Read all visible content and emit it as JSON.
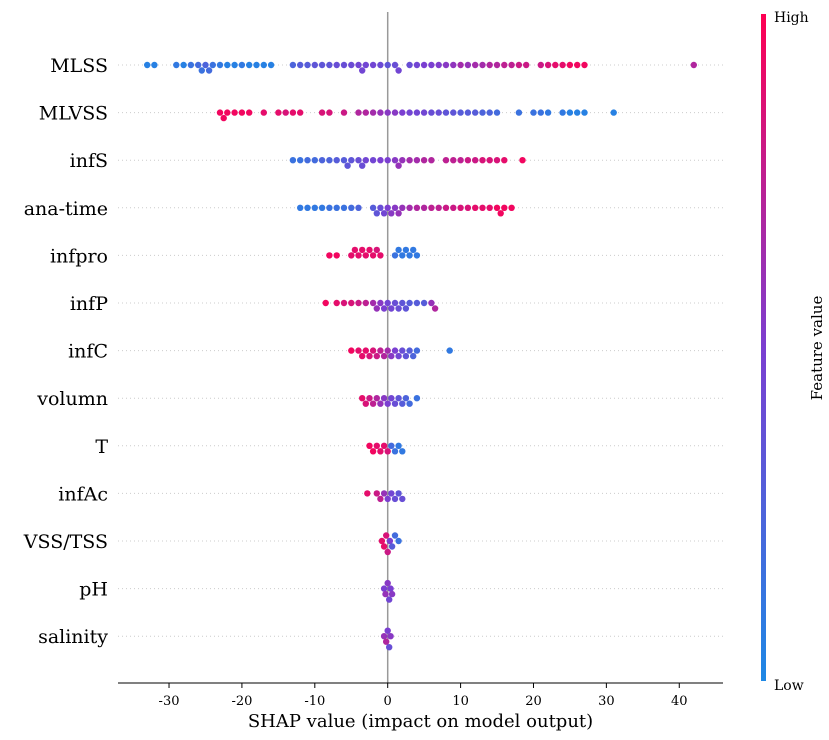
{
  "chart_data": {
    "type": "scatter",
    "subtype": "shap-beeswarm",
    "title": "",
    "xlabel": "SHAP value (impact on model output)",
    "ylabel": "",
    "xlim": [
      -37,
      46
    ],
    "xticks": [
      "-30",
      "-20",
      "-10",
      "0",
      "10",
      "20",
      "30",
      "40"
    ],
    "xtick_values": [
      -30,
      -20,
      -10,
      0,
      10,
      20,
      30,
      40
    ],
    "grid": false,
    "colorbar": {
      "title": "Feature value",
      "high_label": "High",
      "low_label": "Low",
      "low_color": "#1e88e5",
      "mid_color": "#7b3fd1",
      "high_color": "#ff0052"
    },
    "features": [
      {
        "name": "MLSS",
        "x_range": [
          -33.5,
          42
        ],
        "points": [
          [
            -33,
            0.05
          ],
          [
            -32,
            0.05
          ],
          [
            -29,
            0.1
          ],
          [
            -28,
            0.05
          ],
          [
            -27,
            0.15
          ],
          [
            -26,
            0.2
          ],
          [
            -25,
            0.25
          ],
          [
            -25.5,
            0.15
          ],
          [
            -24.5,
            0.2
          ],
          [
            -24,
            0.15
          ],
          [
            -23,
            0.1
          ],
          [
            -22,
            0.05
          ],
          [
            -21,
            0.05
          ],
          [
            -20,
            0.1
          ],
          [
            -19,
            0.05
          ],
          [
            -18,
            0.05
          ],
          [
            -17,
            0.05
          ],
          [
            -16,
            0.05
          ],
          [
            -13,
            0.25
          ],
          [
            -12,
            0.3
          ],
          [
            -11,
            0.3
          ],
          [
            -10,
            0.35
          ],
          [
            -9,
            0.35
          ],
          [
            -8,
            0.35
          ],
          [
            -7,
            0.4
          ],
          [
            -6,
            0.4
          ],
          [
            -5,
            0.42
          ],
          [
            -4,
            0.45
          ],
          [
            -3.5,
            0.45
          ],
          [
            -3,
            0.45
          ],
          [
            -2,
            0.45
          ],
          [
            -1,
            0.42
          ],
          [
            0,
            0.35
          ],
          [
            1,
            0.4
          ],
          [
            1.5,
            0.45
          ],
          [
            3,
            0.4
          ],
          [
            4,
            0.45
          ],
          [
            5,
            0.5
          ],
          [
            6,
            0.5
          ],
          [
            7,
            0.52
          ],
          [
            8,
            0.55
          ],
          [
            9,
            0.58
          ],
          [
            10,
            0.65
          ],
          [
            11,
            0.6
          ],
          [
            12,
            0.65
          ],
          [
            13,
            0.65
          ],
          [
            14,
            0.7
          ],
          [
            15,
            0.7
          ],
          [
            16,
            0.75
          ],
          [
            17,
            0.75
          ],
          [
            18,
            0.8
          ],
          [
            19,
            0.8
          ],
          [
            21,
            0.8
          ],
          [
            22,
            0.85
          ],
          [
            23,
            0.9
          ],
          [
            24,
            0.9
          ],
          [
            25,
            0.95
          ],
          [
            26,
            0.95
          ],
          [
            27,
            0.95
          ],
          [
            42,
            0.7
          ]
        ]
      },
      {
        "name": "MLVSS",
        "x_range": [
          -23,
          31
        ],
        "points": [
          [
            -23,
            0.95
          ],
          [
            -22.5,
            0.95
          ],
          [
            -22,
            0.95
          ],
          [
            -21,
            0.95
          ],
          [
            -20,
            0.95
          ],
          [
            -19,
            0.95
          ],
          [
            -17,
            0.9
          ],
          [
            -15,
            0.9
          ],
          [
            -14,
            0.85
          ],
          [
            -13,
            0.9
          ],
          [
            -12,
            0.9
          ],
          [
            -9,
            0.85
          ],
          [
            -8,
            0.85
          ],
          [
            -6,
            0.8
          ],
          [
            -4,
            0.7
          ],
          [
            -3,
            0.7
          ],
          [
            -2,
            0.65
          ],
          [
            -1,
            0.6
          ],
          [
            0,
            0.55
          ],
          [
            1,
            0.55
          ],
          [
            2,
            0.5
          ],
          [
            3,
            0.45
          ],
          [
            4,
            0.45
          ],
          [
            5,
            0.45
          ],
          [
            6,
            0.4
          ],
          [
            7,
            0.4
          ],
          [
            8,
            0.35
          ],
          [
            9,
            0.35
          ],
          [
            10,
            0.3
          ],
          [
            11,
            0.3
          ],
          [
            12,
            0.3
          ],
          [
            13,
            0.25
          ],
          [
            14,
            0.25
          ],
          [
            15,
            0.2
          ],
          [
            18,
            0.15
          ],
          [
            20,
            0.15
          ],
          [
            21,
            0.15
          ],
          [
            22,
            0.1
          ],
          [
            24,
            0.1
          ],
          [
            25,
            0.05
          ],
          [
            26,
            0.05
          ],
          [
            27,
            0.05
          ],
          [
            31,
            0.05
          ]
        ]
      },
      {
        "name": "infS",
        "x_range": [
          -13.5,
          18.5
        ],
        "points": [
          [
            -13,
            0.15
          ],
          [
            -12,
            0.15
          ],
          [
            -11,
            0.2
          ],
          [
            -10,
            0.2
          ],
          [
            -9,
            0.25
          ],
          [
            -8,
            0.25
          ],
          [
            -7,
            0.3
          ],
          [
            -6,
            0.3
          ],
          [
            -5.5,
            0.35
          ],
          [
            -5,
            0.35
          ],
          [
            -4,
            0.4
          ],
          [
            -3.5,
            0.4
          ],
          [
            -3,
            0.45
          ],
          [
            -2,
            0.45
          ],
          [
            -1,
            0.5
          ],
          [
            0,
            0.5
          ],
          [
            1,
            0.55
          ],
          [
            1.5,
            0.6
          ],
          [
            2,
            0.6
          ],
          [
            3,
            0.65
          ],
          [
            4,
            0.65
          ],
          [
            5,
            0.7
          ],
          [
            6,
            0.7
          ],
          [
            8,
            0.75
          ],
          [
            9,
            0.75
          ],
          [
            10,
            0.75
          ],
          [
            11,
            0.8
          ],
          [
            12,
            0.8
          ],
          [
            13,
            0.85
          ],
          [
            14,
            0.85
          ],
          [
            15,
            0.85
          ],
          [
            16,
            0.9
          ],
          [
            18.5,
            0.95
          ]
        ]
      },
      {
        "name": "ana-time",
        "x_range": [
          -12,
          17.5
        ],
        "points": [
          [
            -12,
            0.1
          ],
          [
            -11,
            0.1
          ],
          [
            -10,
            0.1
          ],
          [
            -9,
            0.1
          ],
          [
            -8,
            0.15
          ],
          [
            -7,
            0.15
          ],
          [
            -6,
            0.15
          ],
          [
            -5,
            0.2
          ],
          [
            -4,
            0.25
          ],
          [
            -2,
            0.3
          ],
          [
            -1.5,
            0.35
          ],
          [
            -1,
            0.4
          ],
          [
            -0.5,
            0.45
          ],
          [
            0,
            0.5
          ],
          [
            0.5,
            0.55
          ],
          [
            1,
            0.55
          ],
          [
            1.5,
            0.6
          ],
          [
            2,
            0.6
          ],
          [
            3,
            0.65
          ],
          [
            4,
            0.7
          ],
          [
            5,
            0.7
          ],
          [
            6,
            0.75
          ],
          [
            7,
            0.75
          ],
          [
            8,
            0.8
          ],
          [
            9,
            0.8
          ],
          [
            10,
            0.85
          ],
          [
            11,
            0.85
          ],
          [
            12,
            0.9
          ],
          [
            13,
            0.9
          ],
          [
            14,
            0.9
          ],
          [
            15,
            0.95
          ],
          [
            15.5,
            0.95
          ],
          [
            16,
            0.95
          ],
          [
            17,
            0.95
          ]
        ]
      },
      {
        "name": "infpro",
        "x_range": [
          -8,
          4
        ],
        "points": [
          [
            -8,
            0.95
          ],
          [
            -7,
            0.95
          ],
          [
            -5,
            0.9
          ],
          [
            -4.5,
            0.9
          ],
          [
            -4,
            0.9
          ],
          [
            -3.5,
            0.9
          ],
          [
            -3,
            0.9
          ],
          [
            -2.5,
            0.9
          ],
          [
            -2,
            0.9
          ],
          [
            -1.5,
            0.85
          ],
          [
            -1,
            0.9
          ],
          [
            1,
            0.15
          ],
          [
            1.5,
            0.1
          ],
          [
            2,
            0.1
          ],
          [
            2.5,
            0.1
          ],
          [
            3,
            0.1
          ],
          [
            3.5,
            0.1
          ],
          [
            4,
            0.1
          ]
        ]
      },
      {
        "name": "infP",
        "x_range": [
          -8.5,
          6.5
        ],
        "points": [
          [
            -8.5,
            0.95
          ],
          [
            -7,
            0.9
          ],
          [
            -6,
            0.85
          ],
          [
            -5,
            0.85
          ],
          [
            -4,
            0.8
          ],
          [
            -3,
            0.75
          ],
          [
            -2,
            0.65
          ],
          [
            -1.5,
            0.6
          ],
          [
            -1,
            0.55
          ],
          [
            -0.5,
            0.5
          ],
          [
            0,
            0.45
          ],
          [
            0.5,
            0.45
          ],
          [
            1,
            0.4
          ],
          [
            1.5,
            0.4
          ],
          [
            2,
            0.35
          ],
          [
            2.5,
            0.35
          ],
          [
            3,
            0.3
          ],
          [
            4,
            0.3
          ],
          [
            5,
            0.3
          ],
          [
            6,
            0.6
          ],
          [
            6.5,
            0.7
          ]
        ]
      },
      {
        "name": "infC",
        "x_range": [
          -5,
          8.5
        ],
        "points": [
          [
            -5,
            0.95
          ],
          [
            -4,
            0.9
          ],
          [
            -3.5,
            0.9
          ],
          [
            -3,
            0.9
          ],
          [
            -2.5,
            0.85
          ],
          [
            -2,
            0.85
          ],
          [
            -1.5,
            0.8
          ],
          [
            -1,
            0.75
          ],
          [
            -0.5,
            0.7
          ],
          [
            0,
            0.65
          ],
          [
            0.5,
            0.55
          ],
          [
            1,
            0.5
          ],
          [
            1.5,
            0.45
          ],
          [
            2,
            0.4
          ],
          [
            2.5,
            0.35
          ],
          [
            3,
            0.3
          ],
          [
            3.5,
            0.25
          ],
          [
            4,
            0.2
          ],
          [
            8.5,
            0.1
          ]
        ]
      },
      {
        "name": "volumn",
        "x_range": [
          -3.5,
          4
        ],
        "points": [
          [
            -3.5,
            0.9
          ],
          [
            -3,
            0.85
          ],
          [
            -2.5,
            0.8
          ],
          [
            -2,
            0.75
          ],
          [
            -1.5,
            0.7
          ],
          [
            -1,
            0.6
          ],
          [
            -0.5,
            0.55
          ],
          [
            0,
            0.5
          ],
          [
            0.5,
            0.45
          ],
          [
            1,
            0.4
          ],
          [
            1.5,
            0.35
          ],
          [
            2,
            0.3
          ],
          [
            2.5,
            0.25
          ],
          [
            3,
            0.2
          ],
          [
            4,
            0.15
          ]
        ]
      },
      {
        "name": "T",
        "x_range": [
          -2.5,
          2
        ],
        "points": [
          [
            -2.5,
            0.95
          ],
          [
            -2,
            0.95
          ],
          [
            -1.5,
            0.9
          ],
          [
            -1,
            0.9
          ],
          [
            -0.5,
            0.9
          ],
          [
            0,
            0.85
          ],
          [
            0.5,
            0.2
          ],
          [
            1,
            0.15
          ],
          [
            1.5,
            0.1
          ],
          [
            2,
            0.1
          ]
        ]
      },
      {
        "name": "infAc",
        "x_range": [
          -2.8,
          2
        ],
        "points": [
          [
            -2.8,
            0.9
          ],
          [
            -1.5,
            0.8
          ],
          [
            -1,
            0.75
          ],
          [
            -0.5,
            0.6
          ],
          [
            0,
            0.5
          ],
          [
            0.5,
            0.45
          ],
          [
            1,
            0.4
          ],
          [
            1.5,
            0.35
          ],
          [
            2,
            0.4
          ]
        ]
      },
      {
        "name": "VSS/TSS",
        "x_range": [
          -0.8,
          1.5
        ],
        "points": [
          [
            -0.8,
            0.9
          ],
          [
            -0.5,
            0.9
          ],
          [
            -0.2,
            0.85
          ],
          [
            0,
            0.8
          ],
          [
            0.3,
            0.5
          ],
          [
            0.6,
            0.3
          ],
          [
            1,
            0.2
          ],
          [
            1.5,
            0.15
          ]
        ]
      },
      {
        "name": "pH",
        "x_range": [
          -0.5,
          0.6
        ],
        "points": [
          [
            -0.5,
            0.5
          ],
          [
            -0.3,
            0.6
          ],
          [
            0,
            0.55
          ],
          [
            0.2,
            0.45
          ],
          [
            0.4,
            0.5
          ],
          [
            0.6,
            0.55
          ]
        ]
      },
      {
        "name": "salinity",
        "x_range": [
          -0.5,
          0.4
        ],
        "points": [
          [
            -0.5,
            0.6
          ],
          [
            -0.2,
            0.7
          ],
          [
            0,
            0.5
          ],
          [
            0.2,
            0.4
          ],
          [
            0.4,
            0.55
          ]
        ]
      }
    ]
  }
}
